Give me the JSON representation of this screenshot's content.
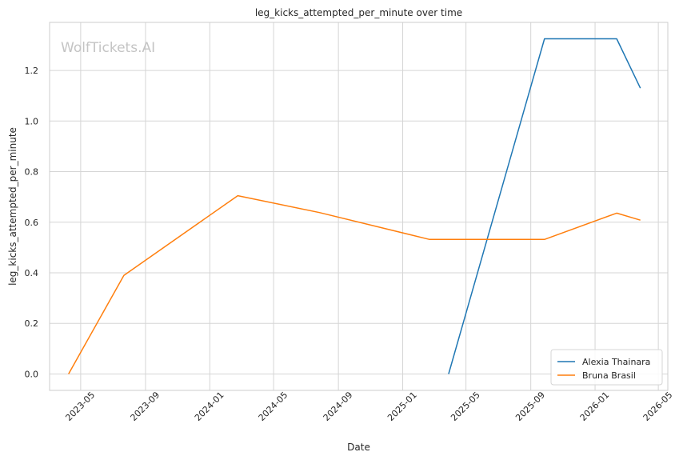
{
  "chart_data": {
    "type": "line",
    "title": "leg_kicks_attempted_per_minute over time",
    "xlabel": "Date",
    "ylabel": "leg_kicks_attempted_per_minute",
    "watermark": "WolfTickets.AI",
    "x_ticks": [
      "2023-05",
      "2023-09",
      "2024-01",
      "2024-05",
      "2024-09",
      "2025-01",
      "2025-05",
      "2025-09",
      "2026-01",
      "2026-05"
    ],
    "y_ticks": [
      "0.0",
      "0.2",
      "0.4",
      "0.6",
      "0.8",
      "1.0",
      "1.2"
    ],
    "y_range": [
      -0.065,
      1.39
    ],
    "x_range": [
      "2023-03-03",
      "2026-05-19"
    ],
    "grid": true,
    "legend_position": "bottom-right",
    "series": [
      {
        "name": "Alexia Thainara",
        "color": "#1f77b4",
        "x": [
          "2025-03-29",
          "2025-09-27",
          "2026-02-11",
          "2026-03-28"
        ],
        "y": [
          0.0,
          1.325,
          1.325,
          1.13
        ]
      },
      {
        "name": "Bruna Brasil",
        "color": "#ff7f0e",
        "x": [
          "2023-04-08",
          "2023-07-22",
          "2024-02-23",
          "2024-07-27",
          "2025-02-21",
          "2025-09-27",
          "2026-02-11",
          "2026-03-28"
        ],
        "y": [
          0.0,
          0.39,
          0.705,
          0.638,
          0.532,
          0.532,
          0.636,
          0.608
        ]
      }
    ]
  }
}
